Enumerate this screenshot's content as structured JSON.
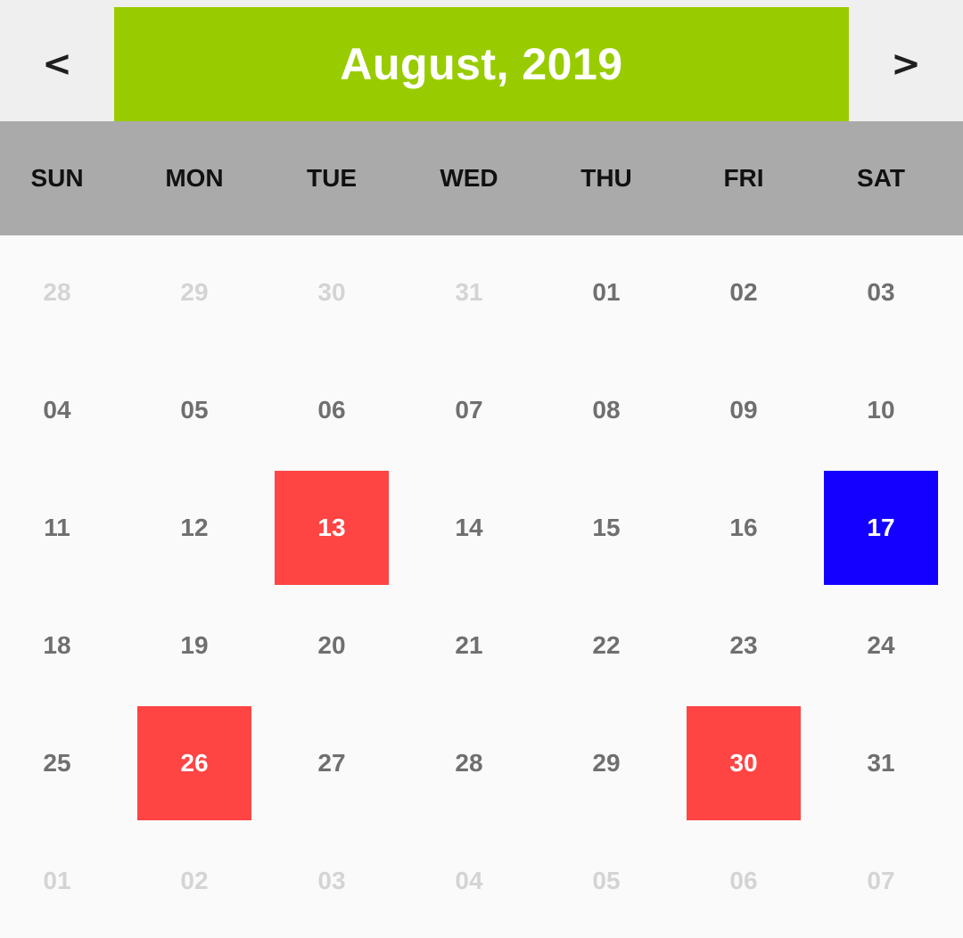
{
  "header": {
    "prev_label": "<",
    "next_label": ">",
    "month_title": "August, 2019"
  },
  "weekdays": [
    "SUN",
    "MON",
    "TUE",
    "WED",
    "THU",
    "FRI",
    "SAT"
  ],
  "colors": {
    "title_bg": "#99cc00",
    "weekday_bg": "#aaaaaa",
    "holiday": "#ff4444",
    "selected": "#1400ff",
    "day_text": "#6f6f6f",
    "outside_text": "#d4d4d4"
  },
  "weeks": [
    [
      {
        "label": "28",
        "state": "outside"
      },
      {
        "label": "29",
        "state": "outside"
      },
      {
        "label": "30",
        "state": "outside"
      },
      {
        "label": "31",
        "state": "outside"
      },
      {
        "label": "01",
        "state": "normal"
      },
      {
        "label": "02",
        "state": "normal"
      },
      {
        "label": "03",
        "state": "normal"
      }
    ],
    [
      {
        "label": "04",
        "state": "normal"
      },
      {
        "label": "05",
        "state": "normal"
      },
      {
        "label": "06",
        "state": "normal"
      },
      {
        "label": "07",
        "state": "normal"
      },
      {
        "label": "08",
        "state": "normal"
      },
      {
        "label": "09",
        "state": "normal"
      },
      {
        "label": "10",
        "state": "normal"
      }
    ],
    [
      {
        "label": "11",
        "state": "normal"
      },
      {
        "label": "12",
        "state": "normal"
      },
      {
        "label": "13",
        "state": "holiday"
      },
      {
        "label": "14",
        "state": "normal"
      },
      {
        "label": "15",
        "state": "normal"
      },
      {
        "label": "16",
        "state": "normal"
      },
      {
        "label": "17",
        "state": "selected"
      }
    ],
    [
      {
        "label": "18",
        "state": "normal"
      },
      {
        "label": "19",
        "state": "normal"
      },
      {
        "label": "20",
        "state": "normal"
      },
      {
        "label": "21",
        "state": "normal"
      },
      {
        "label": "22",
        "state": "normal"
      },
      {
        "label": "23",
        "state": "normal"
      },
      {
        "label": "24",
        "state": "normal"
      }
    ],
    [
      {
        "label": "25",
        "state": "normal"
      },
      {
        "label": "26",
        "state": "holiday"
      },
      {
        "label": "27",
        "state": "normal"
      },
      {
        "label": "28",
        "state": "normal"
      },
      {
        "label": "29",
        "state": "normal"
      },
      {
        "label": "30",
        "state": "holiday"
      },
      {
        "label": "31",
        "state": "normal"
      }
    ],
    [
      {
        "label": "01",
        "state": "outside"
      },
      {
        "label": "02",
        "state": "outside"
      },
      {
        "label": "03",
        "state": "outside"
      },
      {
        "label": "04",
        "state": "outside"
      },
      {
        "label": "05",
        "state": "outside"
      },
      {
        "label": "06",
        "state": "outside"
      },
      {
        "label": "07",
        "state": "outside"
      }
    ]
  ]
}
